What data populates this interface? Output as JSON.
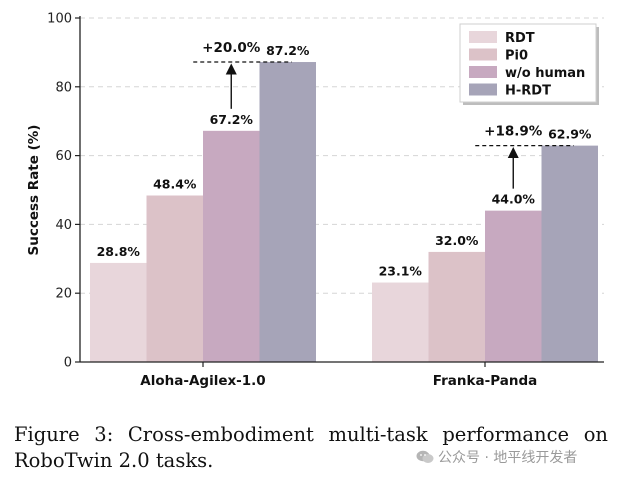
{
  "chart_data": {
    "type": "bar",
    "categories": [
      "Aloha-Agilex-1.0",
      "Franka-Panda"
    ],
    "series": [
      {
        "name": "RDT",
        "values": [
          28.8,
          23.1
        ],
        "labels": [
          "28.8%",
          "23.1%"
        ],
        "color": "#e8d6db"
      },
      {
        "name": "Pi0",
        "values": [
          48.4,
          32.0
        ],
        "labels": [
          "48.4%",
          "32.0%"
        ],
        "color": "#dcc2c8"
      },
      {
        "name": "w/o human",
        "values": [
          67.2,
          44.0
        ],
        "labels": [
          "67.2%",
          "44.0%"
        ],
        "color": "#c7a9c0"
      },
      {
        "name": "H-RDT",
        "values": [
          87.2,
          62.9
        ],
        "labels": [
          "87.2%",
          "62.9%"
        ],
        "color": "#a6a4b8"
      }
    ],
    "annotations": [
      {
        "category": "Aloha-Agilex-1.0",
        "text": "+20.0%",
        "from": 67.2,
        "to": 87.2
      },
      {
        "category": "Franka-Panda",
        "text": "+18.9%",
        "from": 44.0,
        "to": 62.9
      }
    ],
    "xlabel": "",
    "ylabel": "Success Rate (%)",
    "ylim": [
      0,
      100
    ],
    "yticks": [
      0,
      20,
      40,
      60,
      80,
      100
    ],
    "grid": true,
    "legend_position": "top-right"
  },
  "caption": "Figure 3: Cross-embodiment multi-task performance on RoboTwin 2.0 tasks.",
  "watermark": {
    "text": "公众号 · 地平线开发者",
    "icon": "wechat-icon"
  }
}
